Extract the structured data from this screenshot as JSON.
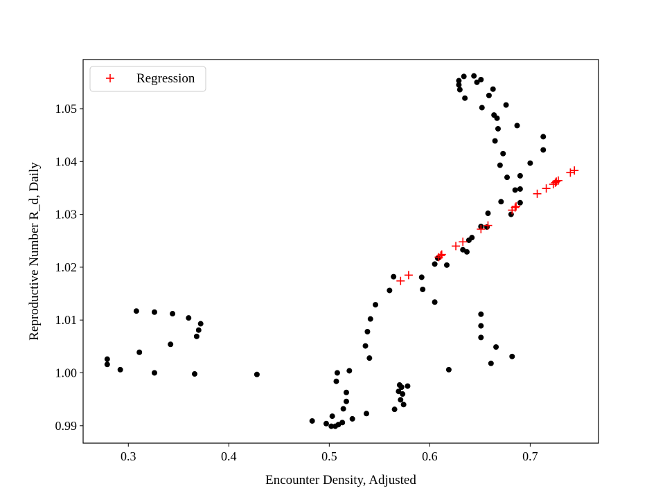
{
  "chart_data": {
    "type": "scatter",
    "title": "",
    "xlabel": "Encounter Density, Adjusted",
    "ylabel": "Reproductive Number R_d, Daily",
    "xlim": [
      0.255,
      0.768
    ],
    "ylim": [
      0.9867,
      1.0593
    ],
    "xticks": [
      {
        "value": 0.3,
        "label": "0.3"
      },
      {
        "value": 0.4,
        "label": "0.4"
      },
      {
        "value": 0.5,
        "label": "0.5"
      },
      {
        "value": 0.6,
        "label": "0.6"
      },
      {
        "value": 0.7,
        "label": "0.7"
      }
    ],
    "yticks": [
      {
        "value": 0.99,
        "label": "0.99"
      },
      {
        "value": 1.0,
        "label": "1.00"
      },
      {
        "value": 1.01,
        "label": "1.01"
      },
      {
        "value": 1.02,
        "label": "1.02"
      },
      {
        "value": 1.03,
        "label": "1.03"
      },
      {
        "value": 1.04,
        "label": "1.04"
      },
      {
        "value": 1.05,
        "label": "1.05"
      }
    ],
    "grid": false,
    "legend": {
      "placement": "top-left",
      "entries": [
        "Regression"
      ]
    },
    "series": [
      {
        "marker": "dot",
        "color": "#000000",
        "points": [
          [
            0.279,
            1.0026
          ],
          [
            0.279,
            1.0016
          ],
          [
            0.292,
            1.0006
          ],
          [
            0.308,
            1.0117
          ],
          [
            0.311,
            1.0039
          ],
          [
            0.326,
            1.0115
          ],
          [
            0.326,
            1.0
          ],
          [
            0.342,
            1.0054
          ],
          [
            0.344,
            1.0112
          ],
          [
            0.36,
            1.0104
          ],
          [
            0.366,
            0.9998
          ],
          [
            0.368,
            1.0069
          ],
          [
            0.37,
            1.0081
          ],
          [
            0.372,
            1.0093
          ],
          [
            0.428,
            0.9997
          ],
          [
            0.483,
            0.9909
          ],
          [
            0.497,
            0.9904
          ],
          [
            0.502,
            0.9899
          ],
          [
            0.503,
            0.9918
          ],
          [
            0.506,
            0.9899
          ],
          [
            0.507,
            0.9984
          ],
          [
            0.508,
            1.0
          ],
          [
            0.509,
            0.9902
          ],
          [
            0.513,
            0.9906
          ],
          [
            0.514,
            0.9932
          ],
          [
            0.517,
            0.9946
          ],
          [
            0.517,
            0.9963
          ],
          [
            0.52,
            1.0004
          ],
          [
            0.523,
            0.9913
          ],
          [
            0.537,
            0.9923
          ],
          [
            0.536,
            1.0051
          ],
          [
            0.538,
            1.0078
          ],
          [
            0.54,
            1.0028
          ],
          [
            0.541,
            1.0102
          ],
          [
            0.546,
            1.0129
          ],
          [
            0.56,
            1.0156
          ],
          [
            0.564,
            1.0182
          ],
          [
            0.565,
            0.9931
          ],
          [
            0.569,
            0.9965
          ],
          [
            0.57,
            0.9977
          ],
          [
            0.571,
            0.9949
          ],
          [
            0.572,
            0.9973
          ],
          [
            0.573,
            0.996
          ],
          [
            0.574,
            0.994
          ],
          [
            0.578,
            0.9975
          ],
          [
            0.592,
            1.0181
          ],
          [
            0.593,
            1.0158
          ],
          [
            0.605,
            1.0134
          ],
          [
            0.605,
            1.0206
          ],
          [
            0.608,
            1.0217
          ],
          [
            0.617,
            1.0204
          ],
          [
            0.619,
            1.0006
          ],
          [
            0.629,
            1.0553
          ],
          [
            0.629,
            1.0545
          ],
          [
            0.63,
            1.0536
          ],
          [
            0.633,
            1.0233
          ],
          [
            0.634,
            1.0561
          ],
          [
            0.635,
            1.052
          ],
          [
            0.637,
            1.0229
          ],
          [
            0.639,
            1.0251
          ],
          [
            0.642,
            1.0256
          ],
          [
            0.644,
            1.0562
          ],
          [
            0.647,
            1.055
          ],
          [
            0.651,
            1.0555
          ],
          [
            0.651,
            1.0277
          ],
          [
            0.651,
            1.0111
          ],
          [
            0.651,
            1.0089
          ],
          [
            0.651,
            1.0067
          ],
          [
            0.652,
            1.0502
          ],
          [
            0.657,
            1.0276
          ],
          [
            0.658,
            1.0302
          ],
          [
            0.659,
            1.0525
          ],
          [
            0.661,
            1.0018
          ],
          [
            0.663,
            1.0537
          ],
          [
            0.664,
            1.0488
          ],
          [
            0.665,
            1.0439
          ],
          [
            0.666,
            1.0049
          ],
          [
            0.667,
            1.0482
          ],
          [
            0.668,
            1.0462
          ],
          [
            0.67,
            1.0393
          ],
          [
            0.671,
            1.0324
          ],
          [
            0.673,
            1.0415
          ],
          [
            0.676,
            1.0507
          ],
          [
            0.677,
            1.037
          ],
          [
            0.681,
            1.03
          ],
          [
            0.682,
            1.0031
          ],
          [
            0.685,
            1.0346
          ],
          [
            0.687,
            1.0468
          ],
          [
            0.69,
            1.0322
          ],
          [
            0.69,
            1.0348
          ],
          [
            0.69,
            1.0373
          ],
          [
            0.7,
            1.0397
          ],
          [
            0.713,
            1.0422
          ],
          [
            0.713,
            1.0447
          ]
        ]
      },
      {
        "name": "Regression",
        "marker": "plus",
        "color": "#ff0000",
        "points": [
          [
            0.571,
            1.0174
          ],
          [
            0.579,
            1.0185
          ],
          [
            0.609,
            1.0219
          ],
          [
            0.611,
            1.0222
          ],
          [
            0.612,
            1.0224
          ],
          [
            0.626,
            1.024
          ],
          [
            0.633,
            1.0248
          ],
          [
            0.651,
            1.0272
          ],
          [
            0.658,
            1.0279
          ],
          [
            0.682,
            1.0308
          ],
          [
            0.685,
            1.0313
          ],
          [
            0.686,
            1.0315
          ],
          [
            0.707,
            1.0339
          ],
          [
            0.716,
            1.0349
          ],
          [
            0.723,
            1.0357
          ],
          [
            0.725,
            1.036
          ],
          [
            0.726,
            1.0362
          ],
          [
            0.728,
            1.0364
          ],
          [
            0.74,
            1.0379
          ],
          [
            0.744,
            1.0383
          ]
        ]
      }
    ]
  }
}
